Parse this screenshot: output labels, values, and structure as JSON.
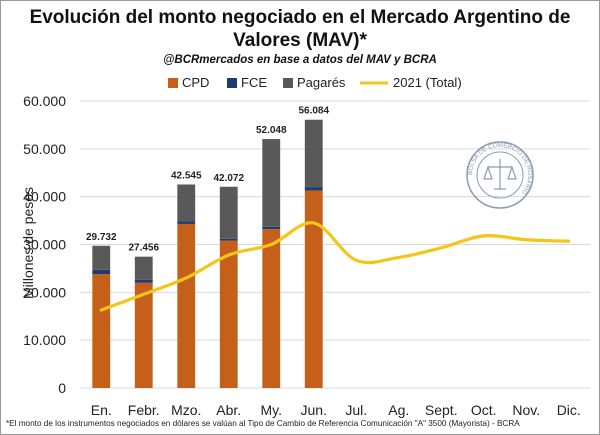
{
  "header": {
    "title_line1": "Evolución del monto negociado en el Mercado Argentino de",
    "title_line2": "Valores (MAV)*",
    "subtitle": "@BCRmercados en base a datos del MAV y BCRA"
  },
  "footnote": "*El monto de los instrumentos negociados en dólares se valúan al Tipo de Cambio de Referencia Comunicación \"A\" 3500 (Mayorista) - BCRA",
  "logo": {
    "text": "BOLSA DE COMERCIO DE ROSARIO",
    "icon": "bcr-seal-icon"
  },
  "colors": {
    "cpd": "#c5601a",
    "fce": "#1f3b73",
    "pagares": "#595959",
    "line2021": "#f5c518",
    "grid": "#d9d9d9"
  },
  "chart_data": {
    "type": "bar",
    "categories": [
      "En.",
      "Febr.",
      "Mzo.",
      "Abr.",
      "My.",
      "Jun.",
      "Jul.",
      "Ag.",
      "Sept.",
      "Oct.",
      "Nov.",
      "Dic."
    ],
    "ylabel": "Millones de pesos",
    "ylim": [
      0,
      60000
    ],
    "yticks": [
      "0",
      "10.000",
      "20.000",
      "30.000",
      "40.000",
      "50.000",
      "60.000"
    ],
    "stacked": true,
    "series": [
      {
        "name": "CPD",
        "values": [
          23800,
          22000,
          34300,
          30800,
          33200,
          41300,
          null,
          null,
          null,
          null,
          null,
          null
        ]
      },
      {
        "name": "FCE",
        "values": [
          900,
          600,
          500,
          400,
          500,
          700,
          null,
          null,
          null,
          null,
          null,
          null
        ]
      },
      {
        "name": "Pagarés",
        "values": [
          5032,
          4856,
          7745,
          10872,
          18348,
          14084,
          null,
          null,
          null,
          null,
          null,
          null
        ]
      }
    ],
    "totals": [
      29732,
      27456,
      42545,
      42072,
      52048,
      56084,
      null,
      null,
      null,
      null,
      null,
      null
    ],
    "total_labels": [
      "29.732",
      "27.456",
      "42.545",
      "42.072",
      "52.048",
      "56.084"
    ],
    "line_series": {
      "name": "2021 (Total)",
      "values": [
        16300,
        19600,
        23000,
        27800,
        30000,
        34500,
        26700,
        27300,
        29300,
        31800,
        31000,
        30700
      ]
    },
    "legend": [
      "CPD",
      "FCE",
      "Pagarés",
      "2021 (Total)"
    ],
    "legend_position": "top",
    "grid": true
  }
}
